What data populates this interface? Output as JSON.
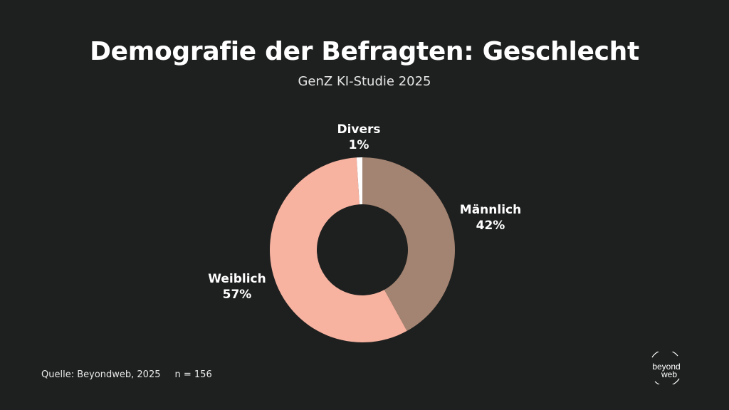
{
  "chart_data": {
    "type": "pie",
    "donut": true,
    "title": "Demografie der Befragten: Geschlecht",
    "subtitle": "GenZ KI-Studie 2025",
    "slices": [
      {
        "name": "Männlich",
        "value": 42,
        "label": "42%",
        "color": "#a38371"
      },
      {
        "name": "Weiblich",
        "value": 57,
        "label": "57%",
        "color": "#f7b2a0"
      },
      {
        "name": "Divers",
        "value": 1,
        "label": "1%",
        "color": "#ffffff"
      }
    ]
  },
  "footer": {
    "source": "Quelle: Beyondweb, 2025",
    "n": "n = 156"
  },
  "logo": {
    "line1": "beyond",
    "line2": "web"
  },
  "colors": {
    "background": "#1e201f",
    "text": "#ffffff"
  }
}
